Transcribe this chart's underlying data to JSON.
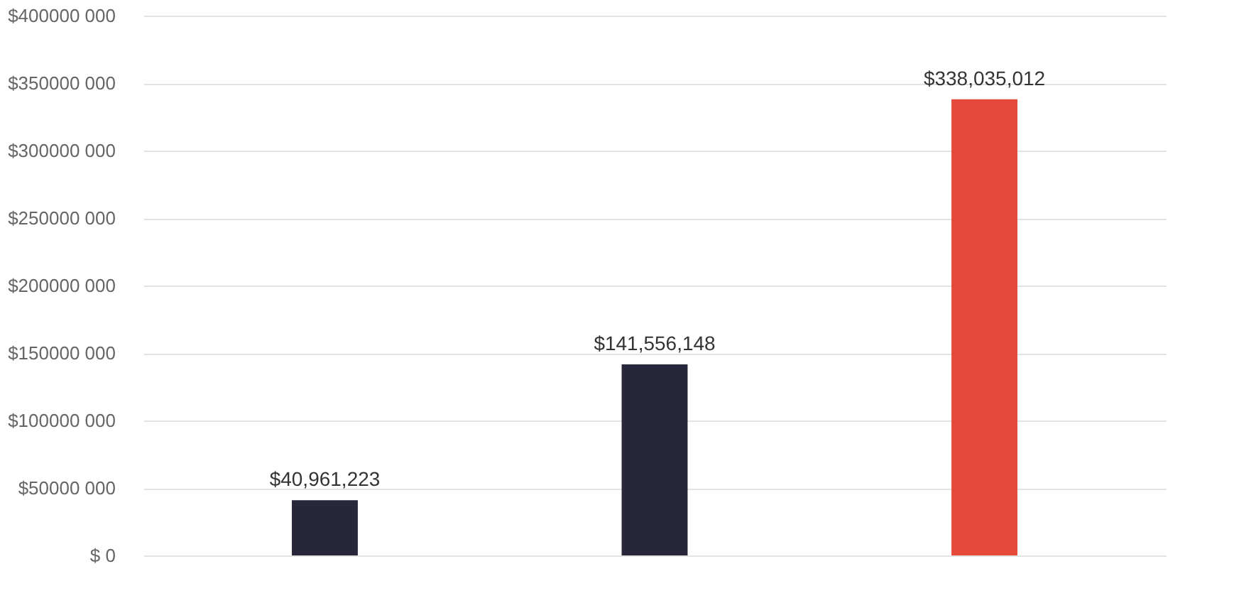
{
  "chart_data": {
    "type": "bar",
    "categories": [
      null,
      null,
      null
    ],
    "values": [
      40961223,
      141556148,
      338035012
    ],
    "colors": [
      "#28273a",
      "#28273a",
      "#e5493a"
    ],
    "value_labels": [
      "$40,961,223",
      "$141,556,148",
      "$338,035,012"
    ],
    "ylim": [
      0,
      400000000
    ],
    "yticks": [
      {
        "value": 0,
        "label": "$ 0"
      },
      {
        "value": 50000000,
        "label": "$50000 000"
      },
      {
        "value": 100000000,
        "label": "$100000 000"
      },
      {
        "value": 150000000,
        "label": "$150000 000"
      },
      {
        "value": 200000000,
        "label": "$200000 000"
      },
      {
        "value": 250000000,
        "label": "$250000 000"
      },
      {
        "value": 300000000,
        "label": "$300000 000"
      },
      {
        "value": 350000000,
        "label": "$350000 000"
      },
      {
        "value": 400000000,
        "label": "$400000 000"
      }
    ],
    "grid": "y"
  }
}
